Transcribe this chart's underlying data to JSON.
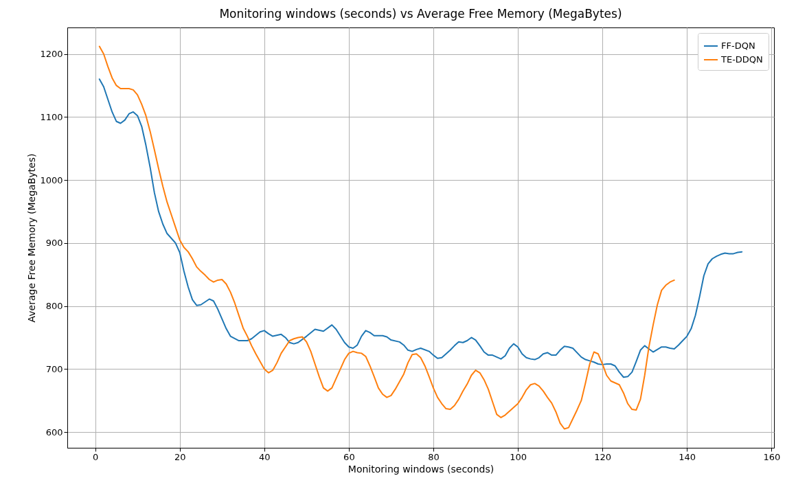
{
  "chart_data": {
    "type": "line",
    "title": "Monitoring windows (seconds) vs Average Free Memory (MegaBytes)",
    "xlabel": "Monitoring windows (seconds)",
    "ylabel": "Average Free Memory (MegaBytes)",
    "xlim": [
      -6.6,
      160.6
    ],
    "ylim": [
      575,
      1242
    ],
    "xticks": [
      0,
      20,
      40,
      60,
      80,
      100,
      120,
      140,
      160
    ],
    "yticks": [
      600,
      700,
      800,
      900,
      1000,
      1100,
      1200
    ],
    "grid": true,
    "legend": "top right",
    "series": [
      {
        "name": "FF-DQN",
        "color": "#1f77b4",
        "x": [
          1,
          2,
          4,
          5,
          6,
          7,
          8,
          9,
          10,
          11,
          12,
          13,
          14,
          15,
          16,
          17,
          19,
          20,
          21,
          22,
          23,
          24,
          25,
          27,
          28,
          29,
          31,
          32,
          34,
          36,
          37,
          39,
          40,
          41,
          42,
          44,
          45,
          46,
          47,
          48,
          50,
          52,
          54,
          56,
          57,
          59,
          60,
          61,
          62,
          63,
          64,
          65,
          66,
          68,
          69,
          70,
          72,
          73,
          74,
          75,
          76,
          77,
          79,
          80,
          81,
          82,
          84,
          85,
          86,
          87,
          88,
          89,
          90,
          91,
          92,
          93,
          94,
          96,
          97,
          98,
          99,
          100,
          101,
          102,
          103,
          104,
          105,
          106,
          107,
          108,
          109,
          110,
          111,
          112,
          113,
          115,
          116,
          117,
          118,
          119,
          120,
          121,
          122,
          123,
          124,
          125,
          126,
          127,
          128,
          129,
          130,
          131,
          132,
          133,
          134,
          135,
          136,
          137,
          138,
          139,
          140,
          141,
          142,
          143,
          144,
          145,
          146,
          147,
          148,
          149,
          150,
          151,
          152,
          153
        ],
        "values": [
          1160,
          1148,
          1108,
          1093,
          1090,
          1095,
          1105,
          1108,
          1102,
          1085,
          1055,
          1020,
          980,
          950,
          930,
          915,
          900,
          885,
          855,
          830,
          810,
          801,
          802,
          811,
          808,
          795,
          764,
          752,
          745,
          745,
          748,
          759,
          761,
          756,
          752,
          755,
          750,
          742,
          740,
          742,
          752,
          763,
          760,
          770,
          763,
          742,
          735,
          733,
          738,
          752,
          761,
          758,
          753,
          753,
          751,
          746,
          743,
          738,
          730,
          728,
          731,
          733,
          728,
          722,
          717,
          718,
          730,
          737,
          743,
          742,
          745,
          750,
          746,
          737,
          727,
          722,
          722,
          716,
          721,
          733,
          740,
          735,
          724,
          718,
          716,
          715,
          718,
          724,
          726,
          722,
          722,
          730,
          736,
          735,
          733,
          719,
          715,
          713,
          711,
          708,
          707,
          708,
          708,
          705,
          695,
          687,
          688,
          695,
          712,
          730,
          737,
          732,
          727,
          731,
          735,
          735,
          733,
          732,
          738,
          745,
          752,
          764,
          785,
          815,
          848,
          867,
          875,
          879,
          882,
          884,
          883,
          883,
          885,
          886
        ]
      },
      {
        "name": "TE-DDQN",
        "color": "#ff7f0e",
        "x": [
          1,
          2,
          3,
          4,
          5,
          6,
          7,
          8,
          9,
          10,
          11,
          12,
          13,
          14,
          15,
          16,
          17,
          18,
          19,
          20,
          21,
          22,
          23,
          24,
          25,
          26,
          27,
          28,
          29,
          30,
          31,
          32,
          33,
          34,
          35,
          36,
          37,
          38,
          39,
          40,
          41,
          42,
          43,
          44,
          45,
          46,
          47,
          48,
          49,
          50,
          51,
          52,
          53,
          54,
          55,
          56,
          57,
          58,
          59,
          60,
          61,
          62,
          63,
          64,
          65,
          66,
          67,
          68,
          69,
          70,
          71,
          72,
          73,
          74,
          75,
          76,
          77,
          78,
          79,
          80,
          81,
          82,
          83,
          84,
          85,
          86,
          87,
          88,
          89,
          90,
          91,
          92,
          93,
          94,
          95,
          96,
          97,
          98,
          99,
          100,
          101,
          102,
          103,
          104,
          105,
          106,
          107,
          108,
          109,
          110,
          111,
          112,
          113,
          114,
          115,
          116,
          117,
          118,
          119,
          120,
          121,
          122,
          123,
          124,
          125,
          126,
          127,
          128,
          129,
          130,
          131,
          132,
          133,
          134,
          135,
          136,
          137
        ],
        "values": [
          1212,
          1200,
          1180,
          1162,
          1150,
          1145,
          1145,
          1145,
          1143,
          1135,
          1120,
          1102,
          1077,
          1048,
          1018,
          990,
          965,
          945,
          925,
          905,
          893,
          886,
          875,
          862,
          855,
          849,
          842,
          838,
          841,
          842,
          835,
          822,
          805,
          785,
          765,
          752,
          737,
          724,
          712,
          700,
          694,
          698,
          710,
          725,
          735,
          745,
          748,
          750,
          751,
          743,
          728,
          708,
          688,
          670,
          665,
          670,
          685,
          700,
          715,
          725,
          728,
          726,
          725,
          720,
          705,
          688,
          670,
          660,
          655,
          658,
          668,
          680,
          692,
          710,
          723,
          724,
          718,
          705,
          688,
          670,
          655,
          645,
          637,
          636,
          642,
          652,
          665,
          676,
          690,
          698,
          694,
          683,
          668,
          648,
          628,
          623,
          627,
          633,
          639,
          645,
          655,
          667,
          675,
          677,
          673,
          665,
          655,
          646,
          632,
          614,
          605,
          607,
          621,
          635,
          650,
          678,
          708,
          727,
          724,
          708,
          690,
          681,
          678,
          675,
          662,
          645,
          636,
          635,
          652,
          690,
          735,
          770,
          802,
          825,
          833,
          838,
          841
        ]
      }
    ]
  }
}
